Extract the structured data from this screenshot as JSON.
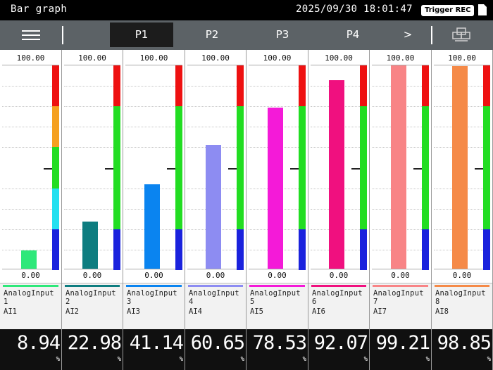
{
  "window": {
    "title": "Bar graph",
    "datetime": "2025/09/30 18:01:47",
    "trigger_label": "Trigger REC",
    "doc_icon": "document-icon"
  },
  "nav": {
    "menu_icon": "hamburger-menu-icon",
    "tabs": [
      {
        "label": "P1",
        "active": true
      },
      {
        "label": "P2",
        "active": false
      },
      {
        "label": "P3",
        "active": false
      },
      {
        "label": "P4",
        "active": false
      }
    ],
    "next_label": ">",
    "multi_window_icon": "multi-window-icon"
  },
  "channels": [
    {
      "max": "100.00",
      "min": "0.00",
      "name": "AnalogInput\n1",
      "tag": "AI1",
      "value": "8.94",
      "unit": "%",
      "level": 8.94,
      "color": "#2ee87a",
      "scale": "5band"
    },
    {
      "max": "100.00",
      "min": "0.00",
      "name": "AnalogInput\n2",
      "tag": "AI2",
      "value": "22.98",
      "unit": "%",
      "level": 22.98,
      "color": "#0e7d80",
      "scale": "3band"
    },
    {
      "max": "100.00",
      "min": "0.00",
      "name": "AnalogInput\n3",
      "tag": "AI3",
      "value": "41.14",
      "unit": "%",
      "level": 41.14,
      "color": "#0a84f0",
      "scale": "3band"
    },
    {
      "max": "100.00",
      "min": "0.00",
      "name": "AnalogInput\n4",
      "tag": "AI4",
      "value": "60.65",
      "unit": "%",
      "level": 60.65,
      "color": "#8d8cf2",
      "scale": "3band"
    },
    {
      "max": "100.00",
      "min": "0.00",
      "name": "AnalogInput\n5",
      "tag": "AI5",
      "value": "78.53",
      "unit": "%",
      "level": 78.53,
      "color": "#f41ad8",
      "scale": "3band"
    },
    {
      "max": "100.00",
      "min": "0.00",
      "name": "AnalogInput\n6",
      "tag": "AI6",
      "value": "92.07",
      "unit": "%",
      "level": 92.07,
      "color": "#f0107f",
      "scale": "3band"
    },
    {
      "max": "100.00",
      "min": "0.00",
      "name": "AnalogInput\n7",
      "tag": "AI7",
      "value": "99.21",
      "unit": "%",
      "level": 99.21,
      "color": "#f88486",
      "scale": "3band"
    },
    {
      "max": "100.00",
      "min": "0.00",
      "name": "AnalogInput\n8",
      "tag": "AI8",
      "value": "98.85",
      "unit": "%",
      "level": 98.85,
      "color": "#f58a48",
      "scale": "3band"
    }
  ],
  "scale_colors": {
    "red": "#ee1111",
    "orange": "#f5a020",
    "green": "#22dd22",
    "cyan": "#22e0f0",
    "blue": "#1a22dd"
  }
}
